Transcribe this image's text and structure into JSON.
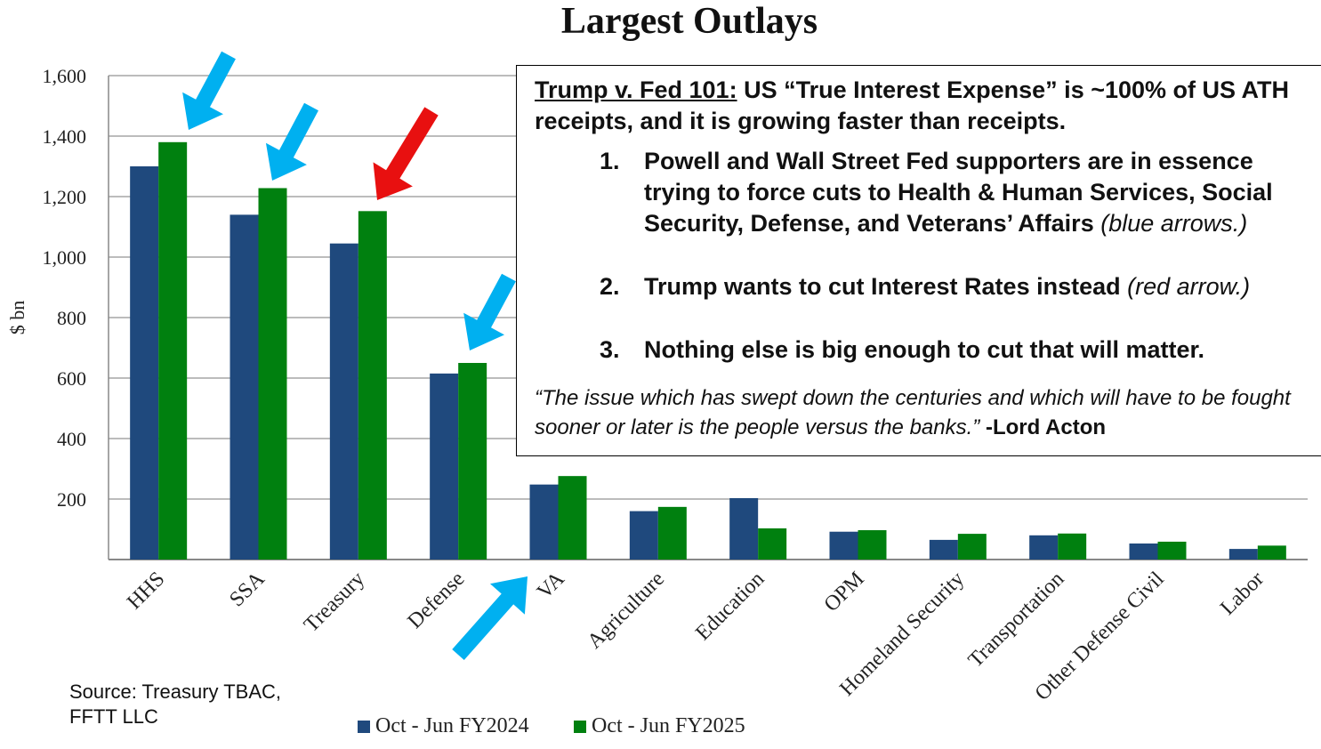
{
  "chart_data": {
    "type": "bar",
    "title": "Largest Outlays",
    "ylabel": "$ bn",
    "xlabel": "",
    "ylim": [
      0,
      1600
    ],
    "yticks": [
      "1,600",
      "1,400",
      "1,200",
      "1,000",
      "800",
      "600",
      "400",
      "200"
    ],
    "grid": true,
    "legend_placement": "bottom",
    "categories": [
      "HHS",
      "SSA",
      "Treasury",
      "Defense",
      "VA",
      "Agriculture",
      "Education",
      "OPM",
      "Homeland Security",
      "Transportation",
      "Other Defense Civil",
      "Labor"
    ],
    "series": [
      {
        "name": "Oct - Jun FY2024",
        "color": "#1f497d",
        "values": [
          1300,
          1140,
          1045,
          615,
          248,
          160,
          203,
          92,
          65,
          80,
          53,
          35
        ]
      },
      {
        "name": "Oct - Jun FY2025",
        "color": "#00800f",
        "values": [
          1380,
          1228,
          1152,
          650,
          276,
          174,
          103,
          97,
          85,
          86,
          59,
          46
        ]
      }
    ]
  },
  "annotation": {
    "heading_underlined": "Trump v. Fed 101:",
    "heading_rest": " US “True Interest Expense” is ~100% of US ATH receipts, and it is growing faster than receipts.",
    "point1": "Powell and Wall Street Fed supporters are in essence trying to force cuts to Health & Human Services, Social Security, Defense, and Veterans’ Affairs",
    "point1_note": " (blue arrows.)",
    "point2": "Trump wants to cut Interest Rates instead",
    "point2_note": " (red arrow.)",
    "point3": "Nothing else is big enough to cut that will matter.",
    "quote": "“The issue which has swept down the centuries and which will have to be fought sooner or later is the people versus the banks.”",
    "quote_author": " -Lord Acton"
  },
  "source": {
    "line1": "Source: Treasury TBAC,",
    "line2": "FFTT LLC"
  },
  "arrows": {
    "blue_color": "#00b0f0",
    "red_color": "#e81010",
    "blue_targets": [
      "HHS",
      "SSA",
      "Defense",
      "VA"
    ],
    "red_targets": [
      "Treasury"
    ]
  }
}
